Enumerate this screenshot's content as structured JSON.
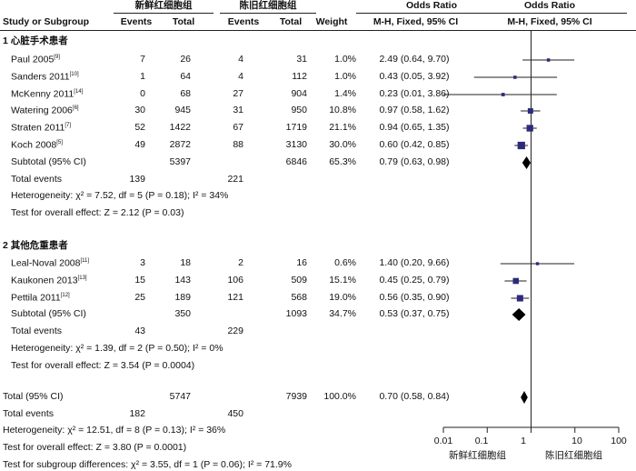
{
  "header": {
    "group1": "新鲜红细胞组",
    "group2": "陈旧红细胞组",
    "study_col": "Study or Subgroup",
    "events": "Events",
    "total": "Total",
    "weight": "Weight",
    "or_title": "Odds Ratio",
    "or_method": "M-H, Fixed, 95% CI"
  },
  "subgroups": [
    {
      "title": "1 心脏手术患者",
      "studies": [
        {
          "name": "Paul 2005",
          "ref": "[9]",
          "e1": "7",
          "n1": "26",
          "e2": "4",
          "n2": "31",
          "weight": "1.0%",
          "ci": "2.49 (0.64, 9.70)"
        },
        {
          "name": "Sanders 2011",
          "ref": "[10]",
          "e1": "1",
          "n1": "64",
          "e2": "4",
          "n2": "112",
          "weight": "1.0%",
          "ci": "0.43 (0.05, 3.92)"
        },
        {
          "name": "McKenny 2011",
          "ref": "[14]",
          "e1": "0",
          "n1": "68",
          "e2": "27",
          "n2": "904",
          "weight": "1.4%",
          "ci": "0.23 (0.01, 3.86)"
        },
        {
          "name": "Watering 2006",
          "ref": "[6]",
          "e1": "30",
          "n1": "945",
          "e2": "31",
          "n2": "950",
          "weight": "10.8%",
          "ci": "0.97 (0.58, 1.62)"
        },
        {
          "name": "Straten 2011",
          "ref": "[7]",
          "e1": "52",
          "n1": "1422",
          "e2": "67",
          "n2": "1719",
          "weight": "21.1%",
          "ci": "0.94 (0.65, 1.35)"
        },
        {
          "name": "Koch 2008",
          "ref": "[5]",
          "e1": "49",
          "n1": "2872",
          "e2": "88",
          "n2": "3130",
          "weight": "30.0%",
          "ci": "0.60 (0.42, 0.85)"
        }
      ],
      "subtotal": {
        "label": "Subtotal (95% CI)",
        "n1": "5397",
        "n2": "6846",
        "weight": "65.3%",
        "ci": "0.79 (0.63, 0.98)"
      },
      "total_events": {
        "label": "Total events",
        "e1": "139",
        "e2": "221"
      },
      "heterogeneity": "Heterogeneity: χ² = 7.52, df = 5 (P = 0.18); I² = 34%",
      "overall": "Test for overall effect: Z = 2.12 (P = 0.03)"
    },
    {
      "title": "2 其他危重患者",
      "studies": [
        {
          "name": "Leal-Noval 2008",
          "ref": "[11]",
          "e1": "3",
          "n1": "18",
          "e2": "2",
          "n2": "16",
          "weight": "0.6%",
          "ci": "1.40 (0.20, 9.66)"
        },
        {
          "name": "Kaukonen 2013",
          "ref": "[13]",
          "e1": "15",
          "n1": "143",
          "e2": "106",
          "n2": "509",
          "weight": "15.1%",
          "ci": "0.45 (0.25, 0.79)"
        },
        {
          "name": "Pettila 2011",
          "ref": "[12]",
          "e1": "25",
          "n1": "189",
          "e2": "121",
          "n2": "568",
          "weight": "19.0%",
          "ci": "0.56 (0.35, 0.90)"
        }
      ],
      "subtotal": {
        "label": "Subtotal (95% CI)",
        "n1": "350",
        "n2": "1093",
        "weight": "34.7%",
        "ci": "0.53 (0.37, 0.75)"
      },
      "total_events": {
        "label": "Total events",
        "e1": "43",
        "e2": "229"
      },
      "heterogeneity": "Heterogeneity: χ² = 1.39, df = 2 (P = 0.50); I² = 0%",
      "overall": "Test for overall effect: Z = 3.54 (P = 0.0004)"
    }
  ],
  "total": {
    "label": "Total (95% CI)",
    "n1": "5747",
    "n2": "7939",
    "weight": "100.0%",
    "ci": "0.70 (0.58, 0.84)"
  },
  "total_events": {
    "label": "Total events",
    "e1": "182",
    "e2": "450"
  },
  "footer": {
    "heterogeneity": "Heterogeneity: χ² = 12.51, df = 8 (P = 0.13); I² = 36%",
    "overall": "Test for overall effect: Z = 3.80 (P = 0.0001)",
    "subgroup": "Test for subgroup differences: χ² = 3.55, df = 1 (P = 0.06); I² = 71.9%"
  },
  "axis": {
    "ticks": [
      "0.01",
      "0.1",
      "1",
      "10",
      "100"
    ],
    "left_label": "新鲜红细胞组",
    "right_label": "陈旧红细胞组"
  },
  "chart_data": {
    "type": "scatter",
    "xscale": "log",
    "xlim": [
      0.01,
      100
    ],
    "reference_line": 1,
    "studies": [
      {
        "name": "Paul 2005",
        "or": 2.49,
        "lo": 0.64,
        "hi": 9.7,
        "weight": 1.0
      },
      {
        "name": "Sanders 2011",
        "or": 0.43,
        "lo": 0.05,
        "hi": 3.92,
        "weight": 1.0
      },
      {
        "name": "McKenny 2011",
        "or": 0.23,
        "lo": 0.01,
        "hi": 3.86,
        "weight": 1.4
      },
      {
        "name": "Watering 2006",
        "or": 0.97,
        "lo": 0.58,
        "hi": 1.62,
        "weight": 10.8
      },
      {
        "name": "Straten 2011",
        "or": 0.94,
        "lo": 0.65,
        "hi": 1.35,
        "weight": 21.1
      },
      {
        "name": "Koch 2008",
        "or": 0.6,
        "lo": 0.42,
        "hi": 0.85,
        "weight": 30.0
      },
      {
        "name": "Subtotal (95% CI)",
        "or": 0.79,
        "lo": 0.63,
        "hi": 0.98,
        "diamond": true
      },
      {
        "name": "Leal-Noval 2008",
        "or": 1.4,
        "lo": 0.2,
        "hi": 9.66,
        "weight": 0.6
      },
      {
        "name": "Kaukonen 2013",
        "or": 0.45,
        "lo": 0.25,
        "hi": 0.79,
        "weight": 15.1
      },
      {
        "name": "Pettila 2011",
        "or": 0.56,
        "lo": 0.35,
        "hi": 0.9,
        "weight": 19.0
      },
      {
        "name": "Subtotal (95% CI)",
        "or": 0.53,
        "lo": 0.37,
        "hi": 0.75,
        "diamond": true
      },
      {
        "name": "Total (95% CI)",
        "or": 0.7,
        "lo": 0.58,
        "hi": 0.84,
        "diamond": true
      }
    ]
  }
}
